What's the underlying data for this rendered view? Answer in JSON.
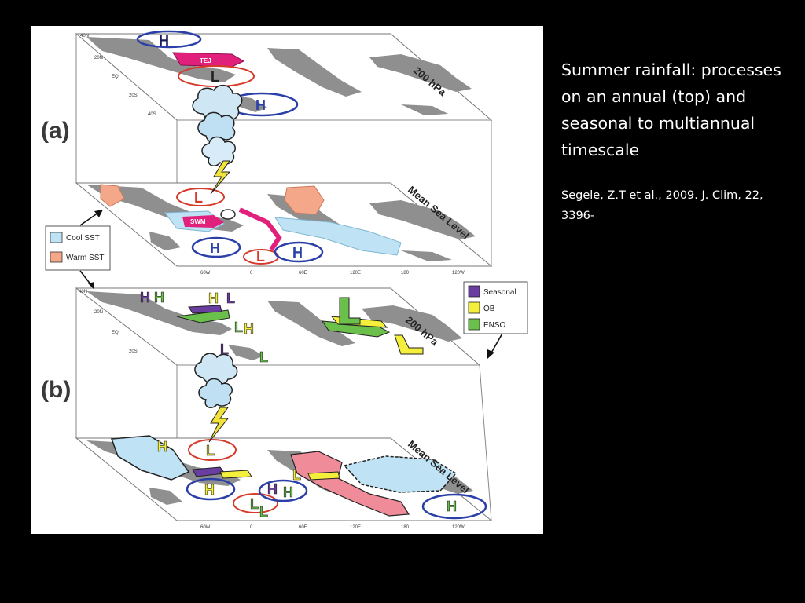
{
  "caption": {
    "title": "Summer rainfall: processes on an annual (top) and seasonal to multiannual timescale",
    "reference": "Segele, Z.T et al., 2009. J. Clim, 22, 3396-"
  },
  "figure": {
    "panels": [
      {
        "label": "(a)",
        "levels": [
          "200 hPa",
          "Mean Sea Level"
        ]
      },
      {
        "label": "(b)",
        "levels": [
          "200 hPa",
          "Mean Sea Level"
        ]
      }
    ],
    "legend_sst": [
      {
        "label": "Cool  SST",
        "color": "#bfe3f5"
      },
      {
        "label": "Warm SST",
        "color": "#f4a889"
      }
    ],
    "legend_timescale": [
      {
        "label": "Seasonal",
        "color": "#6a3da0"
      },
      {
        "label": "QB",
        "color": "#f4ef3a"
      },
      {
        "label": "ENSO",
        "color": "#6bc04b"
      }
    ],
    "lat_ticks": [
      "40N",
      "20N",
      "EQ",
      "20S",
      "40S"
    ],
    "lon_ticks": [
      "60W",
      "0",
      "60E",
      "120E",
      "180",
      "120W"
    ],
    "features_a_upper": [
      "H",
      "TEJ",
      "L",
      "H"
    ],
    "features_a_lower": [
      "L",
      "SWM",
      "L",
      "H",
      "L",
      "H"
    ],
    "features_b_upper": [
      "H",
      "H",
      "H",
      "L",
      "L",
      "H",
      "L",
      "L",
      "L"
    ],
    "features_b_lower": [
      "H",
      "L",
      "L",
      "H",
      "L",
      "H",
      "H",
      "L",
      "H"
    ],
    "colors": {
      "land": "#8f8f8f",
      "high": "#2a3fa8",
      "low": "#d63a2a",
      "jet": "#e0207a"
    }
  }
}
